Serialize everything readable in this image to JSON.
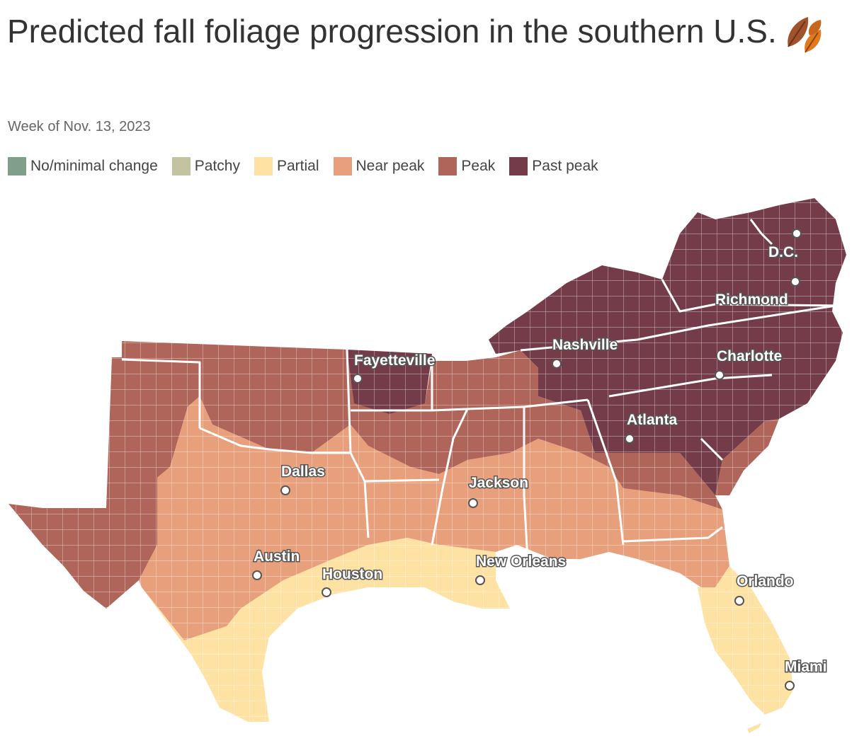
{
  "header": {
    "title": "Predicted fall foliage progression in the southern U.S.",
    "subtitle": "Week of Nov. 13, 2023"
  },
  "legend": [
    {
      "label": "No/minimal change",
      "color": "#7f9f8a"
    },
    {
      "label": "Patchy",
      "color": "#c2c3a0"
    },
    {
      "label": "Partial",
      "color": "#fde2a4"
    },
    {
      "label": "Near peak",
      "color": "#e8a07c"
    },
    {
      "label": "Peak",
      "color": "#b0655a"
    },
    {
      "label": "Past peak",
      "color": "#733c48"
    }
  ],
  "cities": [
    {
      "name": "D.C."
    },
    {
      "name": "Richmond"
    },
    {
      "name": "Nashville"
    },
    {
      "name": "Charlotte"
    },
    {
      "name": "Fayetteville"
    },
    {
      "name": "Atlanta"
    },
    {
      "name": "Dallas"
    },
    {
      "name": "Jackson"
    },
    {
      "name": "Austin"
    },
    {
      "name": "Houston"
    },
    {
      "name": "New Orleans"
    },
    {
      "name": "Orlando"
    },
    {
      "name": "Miami"
    }
  ]
}
